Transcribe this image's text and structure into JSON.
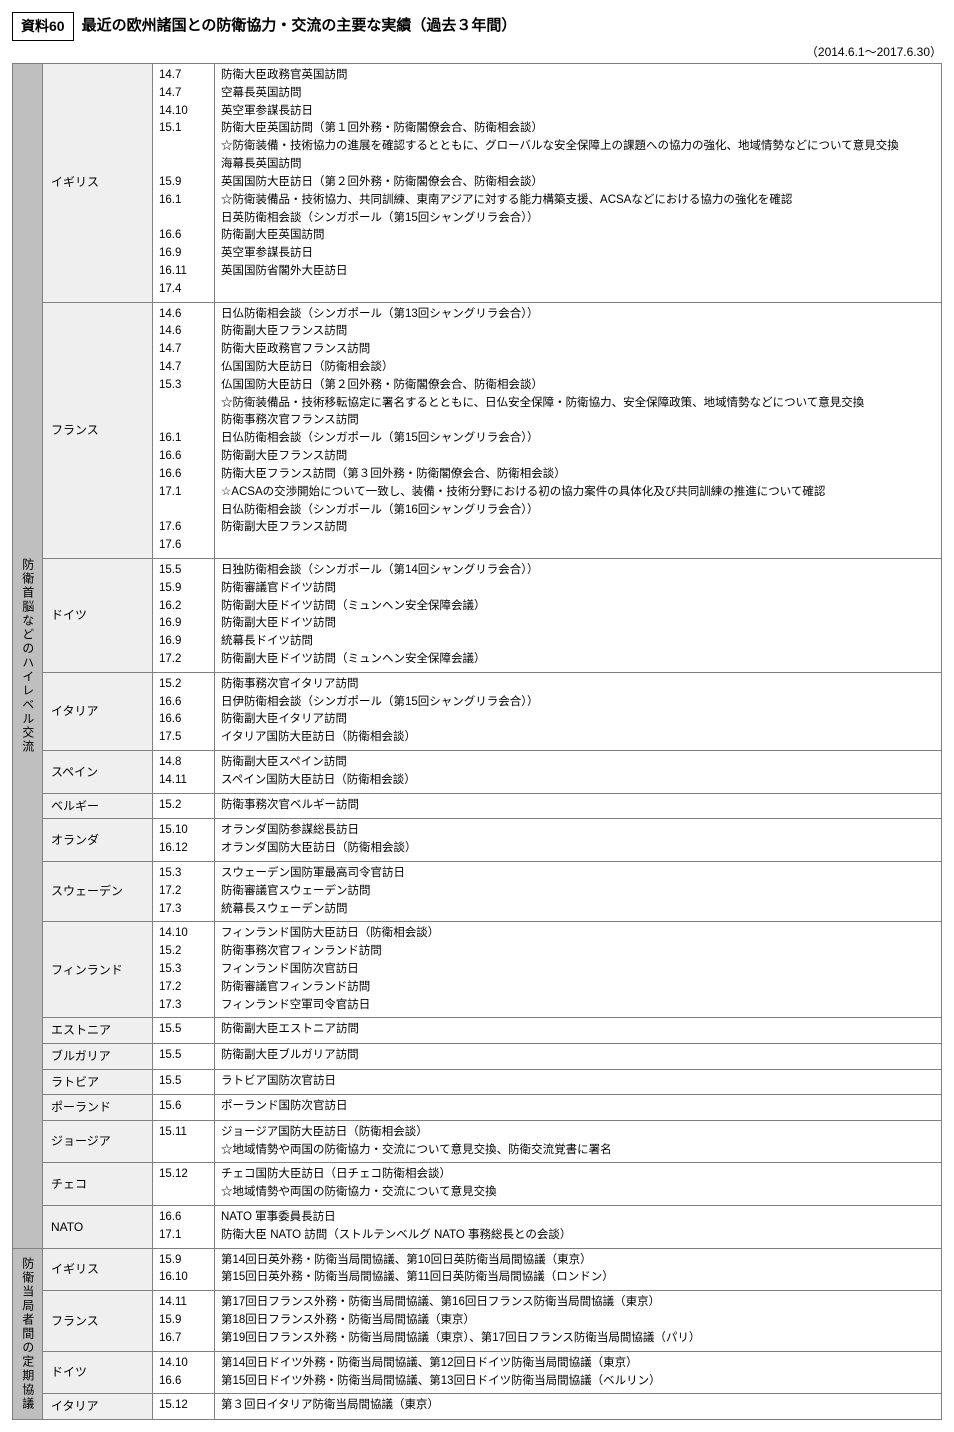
{
  "header": {
    "label": "資料60",
    "title": "最近の欧州諸国との防衛協力・交流の主要な実績（過去３年間）",
    "date_range": "（2014.6.1〜2017.6.30）"
  },
  "colors": {
    "vcat_bg": "#bfbfbf",
    "country_bg": "#efefef",
    "border": "#808080",
    "text": "#000000",
    "page_bg": "#ffffff"
  },
  "sections": [
    {
      "category": "防衛首脳などのハイレベル交流",
      "rows": [
        {
          "country": "イギリス",
          "dates": "14.7\n14.7\n14.10\n15.1\n\n\n15.9\n16.1\n\n16.6\n16.9\n16.11\n17.4",
          "events": "防衛大臣政務官英国訪問\n空幕長英国訪問\n英空軍参謀長訪日\n防衛大臣英国訪問（第１回外務・防衛閣僚会合、防衛相会談）\n☆防衛装備・技術協力の進展を確認するとともに、グローバルな安全保障上の課題への協力の強化、地域情勢などについて意見交換\n海幕長英国訪問\n英国国防大臣訪日（第２回外務・防衛閣僚会合、防衛相会談）\n☆防衛装備品・技術協力、共同訓練、東南アジアに対する能力構築支援、ACSAなどにおける協力の強化を確認\n日英防衛相会談（シンガポール（第15回シャングリラ会合））\n防衛副大臣英国訪問\n英空軍参謀長訪日\n英国国防省閣外大臣訪日"
        },
        {
          "country": "フランス",
          "dates": "14.6\n14.6\n14.7\n14.7\n15.3\n\n\n16.1\n16.6\n16.6\n17.1\n\n17.6\n17.6",
          "events": "日仏防衛相会談（シンガポール（第13回シャングリラ会合））\n防衛副大臣フランス訪問\n防衛大臣政務官フランス訪問\n仏国国防大臣訪日（防衛相会談）\n仏国国防大臣訪日（第２回外務・防衛閣僚会合、防衛相会談）\n☆防衛装備品・技術移転協定に署名するとともに、日仏安全保障・防衛協力、安全保障政策、地域情勢などについて意見交換\n防衛事務次官フランス訪問\n日仏防衛相会談（シンガポール（第15回シャングリラ会合））\n防衛副大臣フランス訪問\n防衛大臣フランス訪問（第３回外務・防衛閣僚会合、防衛相会談）\n☆ACSAの交渉開始について一致し、装備・技術分野における初の協力案件の具体化及び共同訓練の推進について確認\n日仏防衛相会談（シンガポール（第16回シャングリラ会合））\n防衛副大臣フランス訪問"
        },
        {
          "country": "ドイツ",
          "dates": "15.5\n15.9\n16.2\n16.9\n16.9\n17.2",
          "events": "日独防衛相会談（シンガポール（第14回シャングリラ会合））\n防衛審議官ドイツ訪問\n防衛副大臣ドイツ訪問（ミュンヘン安全保障会議）\n防衛副大臣ドイツ訪問\n統幕長ドイツ訪問\n防衛副大臣ドイツ訪問（ミュンヘン安全保障会議）"
        },
        {
          "country": "イタリア",
          "dates": "15.2\n16.6\n16.6\n17.5",
          "events": "防衛事務次官イタリア訪問\n日伊防衛相会談（シンガポール（第15回シャングリラ会合））\n防衛副大臣イタリア訪問\nイタリア国防大臣訪日（防衛相会談）"
        },
        {
          "country": "スペイン",
          "dates": "14.8\n14.11",
          "events": "防衛副大臣スペイン訪問\nスペイン国防大臣訪日（防衛相会談）"
        },
        {
          "country": "ベルギー",
          "dates": "15.2",
          "events": "防衛事務次官ベルギー訪問"
        },
        {
          "country": "オランダ",
          "dates": "15.10\n16.12",
          "events": "オランダ国防参謀総長訪日\nオランダ国防大臣訪日（防衛相会談）"
        },
        {
          "country": "スウェーデン",
          "dates": "15.3\n17.2\n17.3",
          "events": "スウェーデン国防軍最高司令官訪日\n防衛審議官スウェーデン訪問\n統幕長スウェーデン訪問"
        },
        {
          "country": "フィンランド",
          "dates": "14.10\n15.2\n15.3\n17.2\n17.3",
          "events": "フィンランド国防大臣訪日（防衛相会談）\n防衛事務次官フィンランド訪問\nフィンランド国防次官訪日\n防衛審議官フィンランド訪問\nフィンランド空軍司令官訪日"
        },
        {
          "country": "エストニア",
          "dates": "15.5",
          "events": "防衛副大臣エストニア訪問"
        },
        {
          "country": "ブルガリア",
          "dates": "15.5",
          "events": "防衛副大臣ブルガリア訪問"
        },
        {
          "country": "ラトビア",
          "dates": "15.5",
          "events": "ラトビア国防次官訪日"
        },
        {
          "country": "ポーランド",
          "dates": "15.6",
          "events": "ポーランド国防次官訪日"
        },
        {
          "country": "ジョージア",
          "dates": "15.11",
          "events": "ジョージア国防大臣訪日（防衛相会談）\n☆地域情勢や両国の防衛協力・交流について意見交換、防衛交流覚書に署名"
        },
        {
          "country": "チェコ",
          "dates": "15.12",
          "events": "チェコ国防大臣訪日（日チェコ防衛相会談）\n☆地域情勢や両国の防衛協力・交流について意見交換"
        },
        {
          "country": "NATO",
          "dates": "16.6\n17.1",
          "events": "NATO 軍事委員長訪日\n防衛大臣 NATO 訪問（ストルテンベルグ NATO 事務総長との会談）"
        }
      ]
    },
    {
      "category": "防衛当局者間の定期協議",
      "rows": [
        {
          "country": "イギリス",
          "dates": "15.9\n16.10",
          "events": "第14回日英外務・防衛当局間協議、第10回日英防衛当局間協議（東京）\n第15回日英外務・防衛当局間協議、第11回日英防衛当局間協議（ロンドン）"
        },
        {
          "country": "フランス",
          "dates": "14.11\n15.9\n16.7",
          "events": "第17回日フランス外務・防衛当局間協議、第16回日フランス防衛当局間協議（東京）\n第18回日フランス外務・防衛当局間協議（東京）\n第19回日フランス外務・防衛当局間協議（東京）、第17回日フランス防衛当局間協議（パリ）"
        },
        {
          "country": "ドイツ",
          "dates": "14.10\n16.6",
          "events": "第14回日ドイツ外務・防衛当局間協議、第12回日ドイツ防衛当局間協議（東京）\n第15回日ドイツ外務・防衛当局間協議、第13回日ドイツ防衛当局間協議（ベルリン）"
        },
        {
          "country": "イタリア",
          "dates": "15.12",
          "events": "第３回日イタリア防衛当局間協議（東京）"
        }
      ]
    }
  ]
}
